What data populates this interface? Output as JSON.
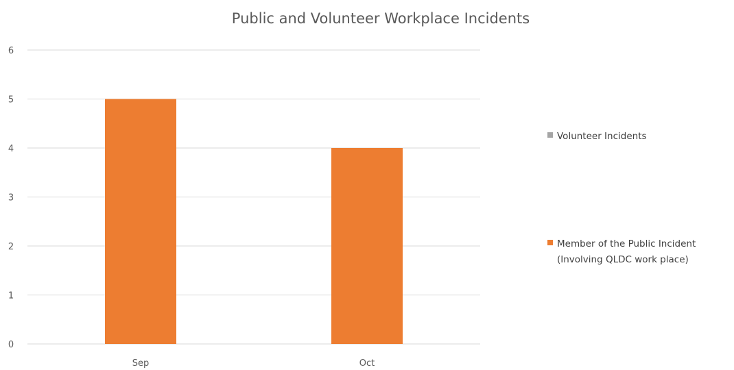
{
  "chart_data": {
    "type": "bar",
    "title": "Public and Volunteer Workplace Incidents",
    "xlabel": "",
    "ylabel": "",
    "categories": [
      "Sep",
      "Oct"
    ],
    "ylim": [
      0,
      6
    ],
    "yticks": [
      0,
      1,
      2,
      3,
      4,
      5,
      6
    ],
    "grid": true,
    "legend_position": "right",
    "series": [
      {
        "name": "Volunteer Incidents",
        "color": "#a5a5a5",
        "values": [
          0,
          0
        ]
      },
      {
        "name": "Member of the Public Incident (Involving QLDC work place)",
        "legend_lines": [
          "Member of the Public Incident",
          "(Involving QLDC work place)"
        ],
        "color": "#ed7d31",
        "values": [
          5,
          4
        ]
      }
    ]
  }
}
